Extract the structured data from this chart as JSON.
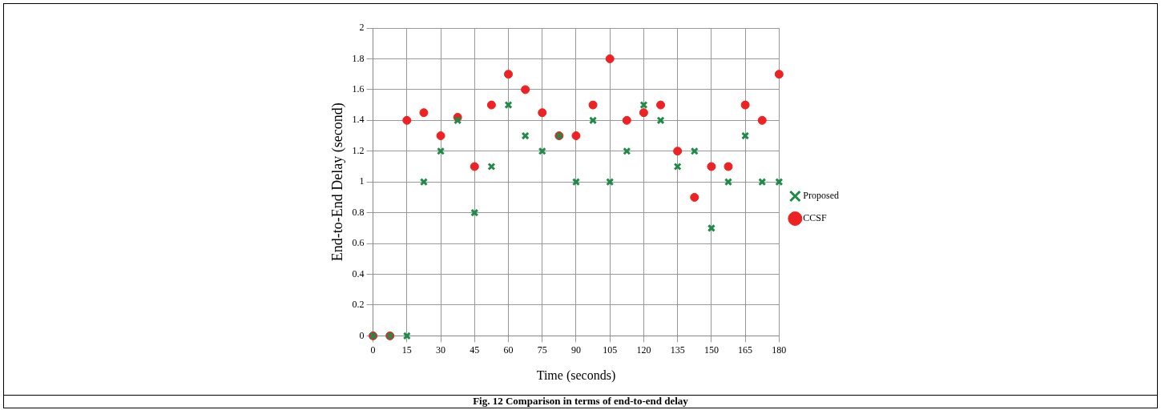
{
  "chart_data": {
    "type": "scatter",
    "xlabel": "Time (seconds)",
    "ylabel": "End-to-End Delay (second)",
    "x": [
      0,
      7.5,
      15,
      22.5,
      30,
      37.5,
      45,
      52.5,
      60,
      67.5,
      75,
      82.5,
      90,
      97.5,
      105,
      112.5,
      120,
      127.5,
      135,
      142.5,
      150,
      157.5,
      165,
      172.5,
      180
    ],
    "series": [
      {
        "name": "CCSF",
        "color": "#ee2222",
        "marker": "circle",
        "values": [
          0,
          0,
          1.4,
          1.45,
          1.3,
          1.42,
          1.1,
          1.5,
          1.7,
          1.6,
          1.45,
          1.3,
          1.3,
          1.5,
          1.8,
          1.4,
          1.45,
          1.5,
          1.2,
          0.9,
          1.1,
          1.1,
          1.5,
          1.4,
          1.7
        ]
      },
      {
        "name": "Proposed",
        "color": "#1e8c46",
        "marker": "cross",
        "values": [
          0,
          0,
          0,
          1.0,
          1.2,
          1.4,
          0.8,
          1.1,
          1.5,
          1.3,
          1.2,
          1.3,
          1.0,
          1.4,
          1.0,
          1.2,
          1.5,
          1.4,
          1.1,
          1.2,
          0.7,
          1.0,
          1.3,
          1.0,
          1.0
        ]
      }
    ],
    "xlim": [
      0,
      180
    ],
    "xticks": [
      0,
      15,
      30,
      45,
      60,
      75,
      90,
      105,
      120,
      135,
      150,
      165,
      180
    ],
    "ylim": [
      0,
      2
    ],
    "yticks": [
      0,
      0.2,
      0.4,
      0.6,
      0.8,
      1,
      1.2,
      1.4,
      1.6,
      1.8,
      2
    ],
    "grid": true,
    "legend": "right",
    "annotations": [
      "Fig. 12 Comparison in terms of end-to-end delay"
    ]
  }
}
